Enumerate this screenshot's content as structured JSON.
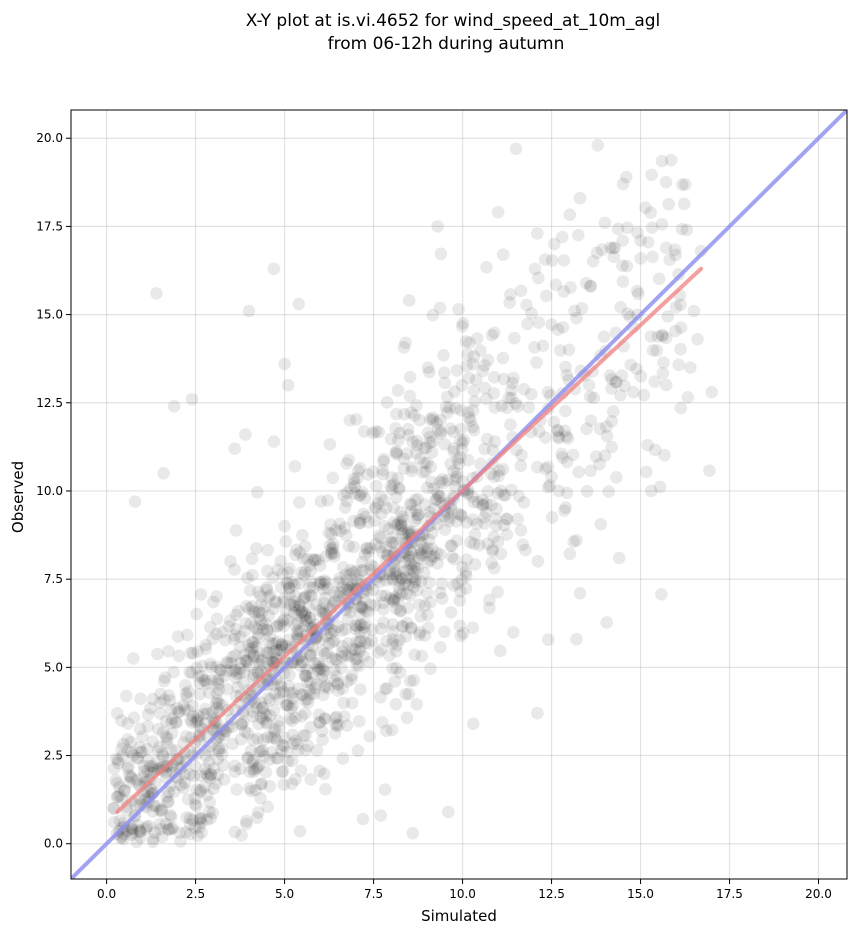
{
  "chart_data": {
    "type": "scatter",
    "title": "X-Y plot at is.vi.4652 for wind_speed_at_10m_agl",
    "subtitle": "from 06-12h during autumn",
    "xlabel": "Simulated",
    "ylabel": "Observed",
    "xlim": [
      -1.0,
      20.8
    ],
    "ylim": [
      -1.0,
      20.8
    ],
    "xticks": [
      "0.0",
      "2.5",
      "5.0",
      "7.5",
      "10.0",
      "12.5",
      "15.0",
      "17.5",
      "20.0"
    ],
    "yticks": [
      "0.0",
      "2.5",
      "5.0",
      "7.5",
      "10.0",
      "12.5",
      "15.0",
      "17.5",
      "20.0"
    ],
    "grid": true,
    "points": [
      [
        1.4,
        15.6
      ],
      [
        2.4,
        12.6
      ],
      [
        4.0,
        15.1
      ],
      [
        4.7,
        16.3
      ],
      [
        5.4,
        15.3
      ],
      [
        8.4,
        14.2
      ],
      [
        8.5,
        15.4
      ],
      [
        9.3,
        17.5
      ],
      [
        11.0,
        17.9
      ],
      [
        11.5,
        19.7
      ],
      [
        12.1,
        17.3
      ],
      [
        12.8,
        17.2
      ],
      [
        13.3,
        18.3
      ],
      [
        13.8,
        19.8
      ],
      [
        14.6,
        18.9
      ],
      [
        14.0,
        17.6
      ],
      [
        14.5,
        17.1
      ],
      [
        15.0,
        17.1
      ],
      [
        16.3,
        17.4
      ],
      [
        16.7,
        16.8
      ],
      [
        16.5,
        15.1
      ],
      [
        15.2,
        11.3
      ],
      [
        15.3,
        10.0
      ],
      [
        14.4,
        8.1
      ],
      [
        13.2,
        8.6
      ],
      [
        13.3,
        7.1
      ],
      [
        13.2,
        5.8
      ],
      [
        12.1,
        3.7
      ],
      [
        10.3,
        3.4
      ],
      [
        8.6,
        0.3
      ],
      [
        9.6,
        0.9
      ],
      [
        7.2,
        0.7
      ],
      [
        7.7,
        0.8
      ],
      [
        1.9,
        12.4
      ],
      [
        0.8,
        9.7
      ],
      [
        0.3,
        3.7
      ],
      [
        0.2,
        1.0
      ],
      [
        0.5,
        1.5
      ],
      [
        0.8,
        0.8
      ],
      [
        1.6,
        10.5
      ],
      [
        4.7,
        11.4
      ],
      [
        5.0,
        13.6
      ],
      [
        5.1,
        13.0
      ],
      [
        3.6,
        11.2
      ],
      [
        3.9,
        11.6
      ],
      [
        14.8,
        12.8
      ],
      [
        16.4,
        13.5
      ],
      [
        16.6,
        14.3
      ],
      [
        17.0,
        12.8
      ],
      [
        15.4,
        13.1
      ],
      [
        12.7,
        10.0
      ],
      [
        12.5,
        10.4
      ],
      [
        14.0,
        11.0
      ],
      [
        13.6,
        15.8
      ],
      [
        13.2,
        14.9
      ],
      [
        12.4,
        12.8
      ]
    ],
    "fit_line": {
      "x": [
        0.3,
        16.7
      ],
      "y": [
        0.9,
        16.3
      ],
      "color": "#f08080"
    },
    "identity_line": {
      "x": [
        -1.0,
        20.8
      ],
      "y": [
        -1.0,
        20.8
      ],
      "color": "#8c8cf0"
    },
    "point_color": "#000000"
  }
}
